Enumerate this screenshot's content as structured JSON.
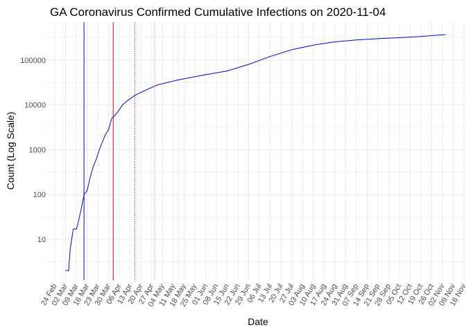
{
  "chart_data": {
    "type": "line",
    "title": "GA Coronavirus Confirmed Cumulative Infections on 2020-11-04",
    "xlabel": "Date",
    "ylabel": "Count (Log Scale)",
    "y_scale": "log10",
    "ylim": [
      1.2,
      700000
    ],
    "xlim": [
      "2020-02-17",
      "2020-11-17"
    ],
    "grid": true,
    "y_ticks": [
      10,
      100,
      1000,
      10000,
      100000
    ],
    "y_tick_labels": [
      "10",
      "100",
      "1000",
      "10000",
      "100000"
    ],
    "x_ticks": [
      "2020-02-24",
      "2020-03-02",
      "2020-03-09",
      "2020-03-16",
      "2020-03-23",
      "2020-03-30",
      "2020-04-06",
      "2020-04-13",
      "2020-04-20",
      "2020-04-27",
      "2020-05-04",
      "2020-05-11",
      "2020-05-18",
      "2020-05-25",
      "2020-06-01",
      "2020-06-08",
      "2020-06-15",
      "2020-06-22",
      "2020-06-29",
      "2020-07-06",
      "2020-07-13",
      "2020-07-20",
      "2020-07-27",
      "2020-08-03",
      "2020-08-10",
      "2020-08-17",
      "2020-08-24",
      "2020-08-31",
      "2020-09-07",
      "2020-09-14",
      "2020-09-21",
      "2020-09-28",
      "2020-10-05",
      "2020-10-12",
      "2020-10-19",
      "2020-10-26",
      "2020-11-02",
      "2020-11-09",
      "2020-11-16"
    ],
    "x_tick_labels": [
      "24 Feb",
      "02 Mar",
      "09 Mar",
      "16 Mar",
      "23 Mar",
      "30 Mar",
      "06 Apr",
      "13 Apr",
      "20 Apr",
      "27 Apr",
      "04 May",
      "11 May",
      "18 May",
      "25 May",
      "01 Jun",
      "08 Jun",
      "15 Jun",
      "22 Jun",
      "29 Jun",
      "06 Jul",
      "13 Jul",
      "20 Jul",
      "27 Jul",
      "03 Aug",
      "10 Aug",
      "17 Aug",
      "24 Aug",
      "31 Aug",
      "07 Sep",
      "14 Sep",
      "21 Sep",
      "28 Sep",
      "05 Oct",
      "12 Oct",
      "19 Oct",
      "26 Oct",
      "02 Nov",
      "09 Nov",
      "16 Nov"
    ],
    "series": [
      {
        "color": "#0000ff",
        "x": [
          "2020-03-02",
          "2020-03-04",
          "2020-03-05",
          "2020-03-06",
          "2020-03-07",
          "2020-03-09",
          "2020-03-10",
          "2020-03-12",
          "2020-03-14",
          "2020-03-16",
          "2020-03-18",
          "2020-03-20",
          "2020-03-22",
          "2020-03-24",
          "2020-03-26",
          "2020-03-28",
          "2020-03-30",
          "2020-04-01",
          "2020-04-03",
          "2020-04-05",
          "2020-04-08",
          "2020-04-12",
          "2020-04-17",
          "2020-04-24",
          "2020-05-01",
          "2020-05-14",
          "2020-06-01",
          "2020-06-15",
          "2020-06-29",
          "2020-07-13",
          "2020-07-27",
          "2020-08-10",
          "2020-08-24",
          "2020-09-07",
          "2020-09-21",
          "2020-10-05",
          "2020-10-19",
          "2020-11-04"
        ],
        "y": [
          2,
          2,
          6,
          10,
          17,
          17,
          22,
          45,
          99,
          121,
          240,
          420,
          620,
          1000,
          1500,
          2200,
          2800,
          5000,
          5800,
          7000,
          10000,
          13000,
          17000,
          22000,
          28000,
          36000,
          47000,
          57000,
          80000,
          120000,
          170000,
          215000,
          255000,
          280000,
          300000,
          315000,
          335000,
          370000
        ]
      }
    ],
    "reference_lines": [
      {
        "date": "2020-03-14",
        "color": "#0000ff",
        "style": "solid"
      },
      {
        "date": "2020-04-02",
        "color": "#ff0000",
        "style": "solid"
      },
      {
        "date": "2020-04-16",
        "color": "#ff0000",
        "style": "dotted"
      },
      {
        "date": "2020-04-29",
        "color": "#ffc0cb",
        "style": "solid"
      },
      {
        "date": "2020-05-14",
        "color": "#ffc0cb",
        "style": "dotted"
      }
    ]
  }
}
